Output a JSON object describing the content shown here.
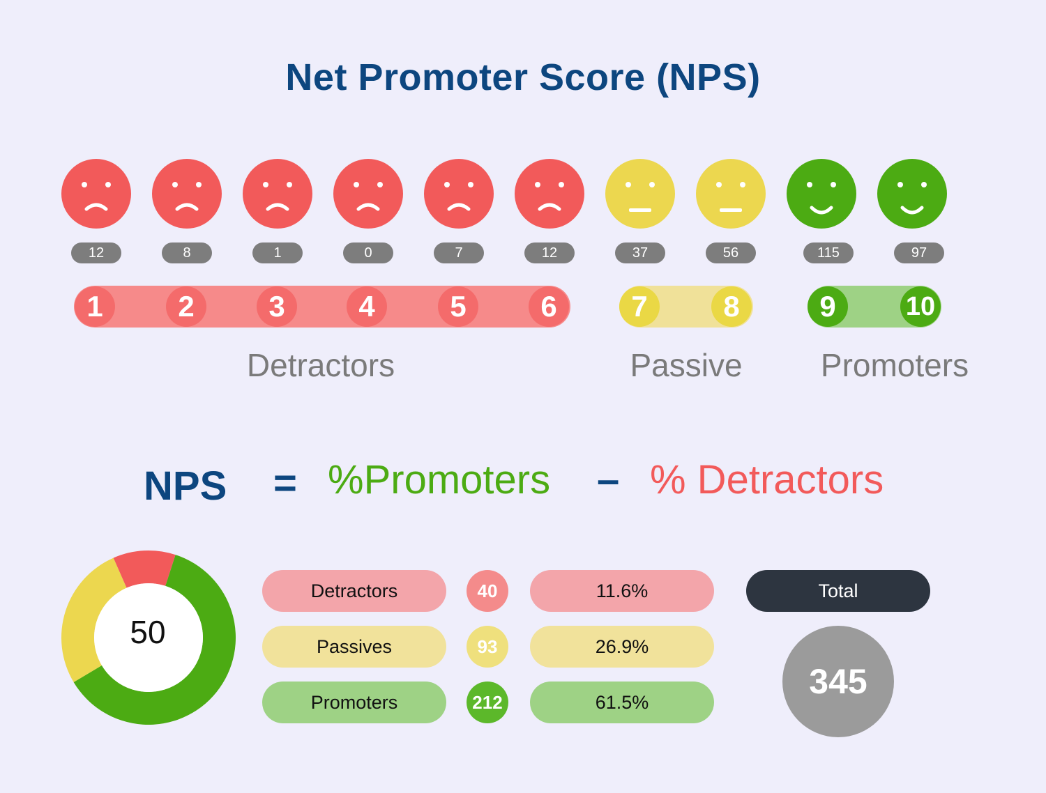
{
  "title": "Net Promoter Score (NPS)",
  "scale": [
    {
      "score": "1",
      "count": "12",
      "face": "sad",
      "group": "detractor"
    },
    {
      "score": "2",
      "count": "8",
      "face": "sad",
      "group": "detractor"
    },
    {
      "score": "3",
      "count": "1",
      "face": "sad",
      "group": "detractor"
    },
    {
      "score": "4",
      "count": "0",
      "face": "sad",
      "group": "detractor"
    },
    {
      "score": "5",
      "count": "7",
      "face": "sad",
      "group": "detractor"
    },
    {
      "score": "6",
      "count": "12",
      "face": "sad",
      "group": "detractor"
    },
    {
      "score": "7",
      "count": "37",
      "face": "neutral",
      "group": "passive"
    },
    {
      "score": "8",
      "count": "56",
      "face": "neutral",
      "group": "passive"
    },
    {
      "score": "9",
      "count": "115",
      "face": "happy",
      "group": "promoter"
    },
    {
      "score": "10",
      "count": "97",
      "face": "happy",
      "group": "promoter"
    }
  ],
  "group_labels": {
    "detractors": "Detractors",
    "passive": "Passive",
    "promoters": "Promoters"
  },
  "formula": {
    "lhs": "NPS",
    "equals": "=",
    "promoters": "%Promoters",
    "minus": "–",
    "detractors": "% Detractors"
  },
  "donut": {
    "center_value": "50",
    "segments": [
      {
        "name": "Promoters",
        "value": 212,
        "color": "#4cab13"
      },
      {
        "name": "Passives",
        "value": 93,
        "color": "#ecd74f"
      },
      {
        "name": "Detractors",
        "value": 40,
        "color": "#f25a5a"
      }
    ]
  },
  "summary": [
    {
      "label": "Detractors",
      "count": "40",
      "percent": "11.6%"
    },
    {
      "label": "Passives",
      "count": "93",
      "percent": "26.9%"
    },
    {
      "label": "Promoters",
      "count": "212",
      "percent": "61.5%"
    }
  ],
  "total": {
    "label": "Total",
    "value": "345"
  },
  "colors": {
    "title_blue": "#0d467f",
    "detractor_red": "#f25a5a",
    "passive_yellow": "#ecd74f",
    "promoter_green": "#4cab13",
    "count_gray": "#7d7d7d",
    "total_dark": "#2d3540",
    "total_circle": "#9b9b9b"
  }
}
